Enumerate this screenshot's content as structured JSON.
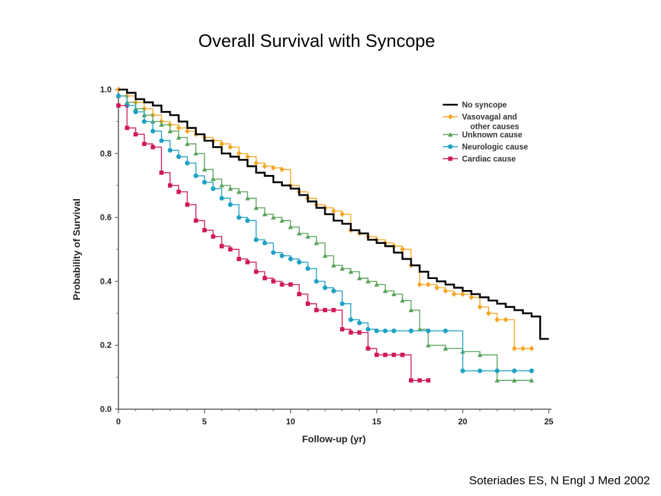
{
  "slide": {
    "title": "Overall Survival with Syncope",
    "citation": "Soteriades ES, N Engl J Med 2002"
  },
  "chart_data": {
    "type": "line",
    "step": true,
    "xlabel": "Follow-up (yr)",
    "ylabel": "Probability of Survival",
    "xlim": [
      0,
      25
    ],
    "ylim": [
      0,
      1
    ],
    "x_ticks": [
      "0",
      "5",
      "10",
      "15",
      "20",
      "25"
    ],
    "y_ticks": [
      "0.0",
      "0.2",
      "0.4",
      "0.6",
      "0.8",
      "1.0"
    ],
    "grid": false,
    "legend": {
      "position": "top-right"
    },
    "series": [
      {
        "name": "No syncope",
        "legend_lines": [
          "No syncope"
        ],
        "color": "#000000",
        "marker": "none",
        "x": [
          0,
          0.5,
          1,
          1.5,
          2,
          2.5,
          3,
          3.5,
          4,
          4.5,
          5,
          5.5,
          6,
          6.5,
          7,
          7.5,
          8,
          8.5,
          9,
          9.5,
          10,
          10.5,
          11,
          11.5,
          12,
          12.5,
          13,
          13.5,
          14,
          14.5,
          15,
          15.5,
          16,
          16.5,
          17,
          17.5,
          18,
          18.5,
          19,
          19.5,
          20,
          20.5,
          21,
          21.5,
          22,
          22.5,
          23,
          23.5,
          24,
          24.5,
          25
        ],
        "y": [
          1.0,
          0.99,
          0.97,
          0.96,
          0.95,
          0.93,
          0.92,
          0.9,
          0.88,
          0.86,
          0.84,
          0.82,
          0.8,
          0.79,
          0.78,
          0.76,
          0.74,
          0.73,
          0.71,
          0.7,
          0.69,
          0.67,
          0.65,
          0.63,
          0.61,
          0.59,
          0.58,
          0.56,
          0.55,
          0.53,
          0.52,
          0.51,
          0.49,
          0.47,
          0.45,
          0.43,
          0.41,
          0.4,
          0.39,
          0.38,
          0.37,
          0.36,
          0.35,
          0.34,
          0.33,
          0.32,
          0.31,
          0.3,
          0.29,
          0.22,
          0.22
        ]
      },
      {
        "name": "Vasovagal and other causes",
        "legend_lines": [
          "Vasovagal and",
          "other causes"
        ],
        "color": "#f5a623",
        "marker": "diamond",
        "x": [
          0,
          0.5,
          1,
          1.5,
          2,
          2.5,
          3,
          3.5,
          4,
          4.5,
          5,
          5.5,
          6,
          6.5,
          7,
          7.5,
          8,
          8.5,
          9,
          9.5,
          10,
          10.5,
          11,
          11.5,
          12,
          12.5,
          13,
          13.5,
          14,
          14.5,
          15,
          15.5,
          16,
          16.5,
          17,
          17.5,
          18,
          18.5,
          19,
          19.5,
          20,
          20.5,
          21,
          21.5,
          22,
          22.5,
          23,
          23.5,
          24
        ],
        "y": [
          1.0,
          0.98,
          0.96,
          0.94,
          0.92,
          0.9,
          0.89,
          0.88,
          0.87,
          0.86,
          0.85,
          0.84,
          0.83,
          0.82,
          0.8,
          0.79,
          0.77,
          0.76,
          0.755,
          0.75,
          0.7,
          0.68,
          0.66,
          0.64,
          0.63,
          0.62,
          0.61,
          0.56,
          0.55,
          0.54,
          0.53,
          0.52,
          0.51,
          0.5,
          0.45,
          0.39,
          0.39,
          0.38,
          0.37,
          0.36,
          0.36,
          0.35,
          0.32,
          0.3,
          0.28,
          0.28,
          0.19,
          0.19,
          0.19
        ]
      },
      {
        "name": "Unknown cause",
        "legend_lines": [
          "Unknown cause"
        ],
        "color": "#5aa35a",
        "marker": "triangle",
        "x": [
          0,
          0.5,
          1,
          1.5,
          2,
          2.5,
          3,
          3.5,
          4,
          4.5,
          5,
          5.5,
          6,
          6.5,
          7,
          7.5,
          8,
          8.5,
          9,
          9.5,
          10,
          10.5,
          11,
          11.5,
          12,
          12.5,
          13,
          13.5,
          14,
          14.5,
          15,
          15.5,
          16,
          16.5,
          17,
          17.5,
          18,
          19,
          20,
          21,
          22,
          23,
          24
        ],
        "y": [
          0.98,
          0.96,
          0.94,
          0.92,
          0.9,
          0.89,
          0.87,
          0.85,
          0.83,
          0.8,
          0.75,
          0.72,
          0.7,
          0.69,
          0.68,
          0.66,
          0.63,
          0.61,
          0.6,
          0.59,
          0.57,
          0.55,
          0.54,
          0.52,
          0.48,
          0.45,
          0.44,
          0.43,
          0.41,
          0.4,
          0.39,
          0.37,
          0.36,
          0.34,
          0.31,
          0.25,
          0.2,
          0.19,
          0.18,
          0.17,
          0.09,
          0.09,
          0.09
        ]
      },
      {
        "name": "Neurologic cause",
        "legend_lines": [
          "Neurologic cause"
        ],
        "color": "#1fa2c4",
        "marker": "circle",
        "x": [
          0,
          0.5,
          1,
          1.5,
          2,
          2.5,
          3,
          3.5,
          4,
          4.5,
          5,
          5.5,
          6,
          6.5,
          7,
          7.5,
          8,
          8.5,
          9,
          9.5,
          10,
          10.5,
          11,
          11.5,
          12,
          12.5,
          13,
          13.5,
          14,
          14.5,
          15,
          15.5,
          16,
          17,
          18,
          19,
          20,
          21,
          22,
          23,
          24
        ],
        "y": [
          0.98,
          0.95,
          0.93,
          0.9,
          0.87,
          0.84,
          0.81,
          0.79,
          0.77,
          0.73,
          0.71,
          0.69,
          0.66,
          0.64,
          0.6,
          0.59,
          0.53,
          0.52,
          0.49,
          0.48,
          0.47,
          0.46,
          0.44,
          0.4,
          0.38,
          0.37,
          0.33,
          0.28,
          0.27,
          0.25,
          0.245,
          0.245,
          0.245,
          0.245,
          0.245,
          0.245,
          0.12,
          0.12,
          0.12,
          0.12,
          0.12
        ]
      },
      {
        "name": "Cardiac cause",
        "legend_lines": [
          "Cardiac cause"
        ],
        "color": "#d0195a",
        "marker": "square",
        "x": [
          0,
          0.5,
          1,
          1.5,
          2,
          2.5,
          3,
          3.5,
          4,
          4.5,
          5,
          5.5,
          6,
          6.5,
          7,
          7.5,
          8,
          8.5,
          9,
          9.5,
          10,
          10.5,
          11,
          11.5,
          12,
          12.5,
          13,
          13.5,
          14,
          14.5,
          15,
          15.5,
          16,
          16.5,
          17,
          17.5,
          18
        ],
        "y": [
          0.95,
          0.88,
          0.86,
          0.83,
          0.82,
          0.74,
          0.7,
          0.68,
          0.64,
          0.59,
          0.56,
          0.54,
          0.51,
          0.5,
          0.47,
          0.46,
          0.43,
          0.41,
          0.4,
          0.39,
          0.39,
          0.36,
          0.33,
          0.31,
          0.31,
          0.31,
          0.25,
          0.24,
          0.24,
          0.19,
          0.17,
          0.17,
          0.17,
          0.17,
          0.09,
          0.09,
          0.09
        ]
      }
    ]
  }
}
